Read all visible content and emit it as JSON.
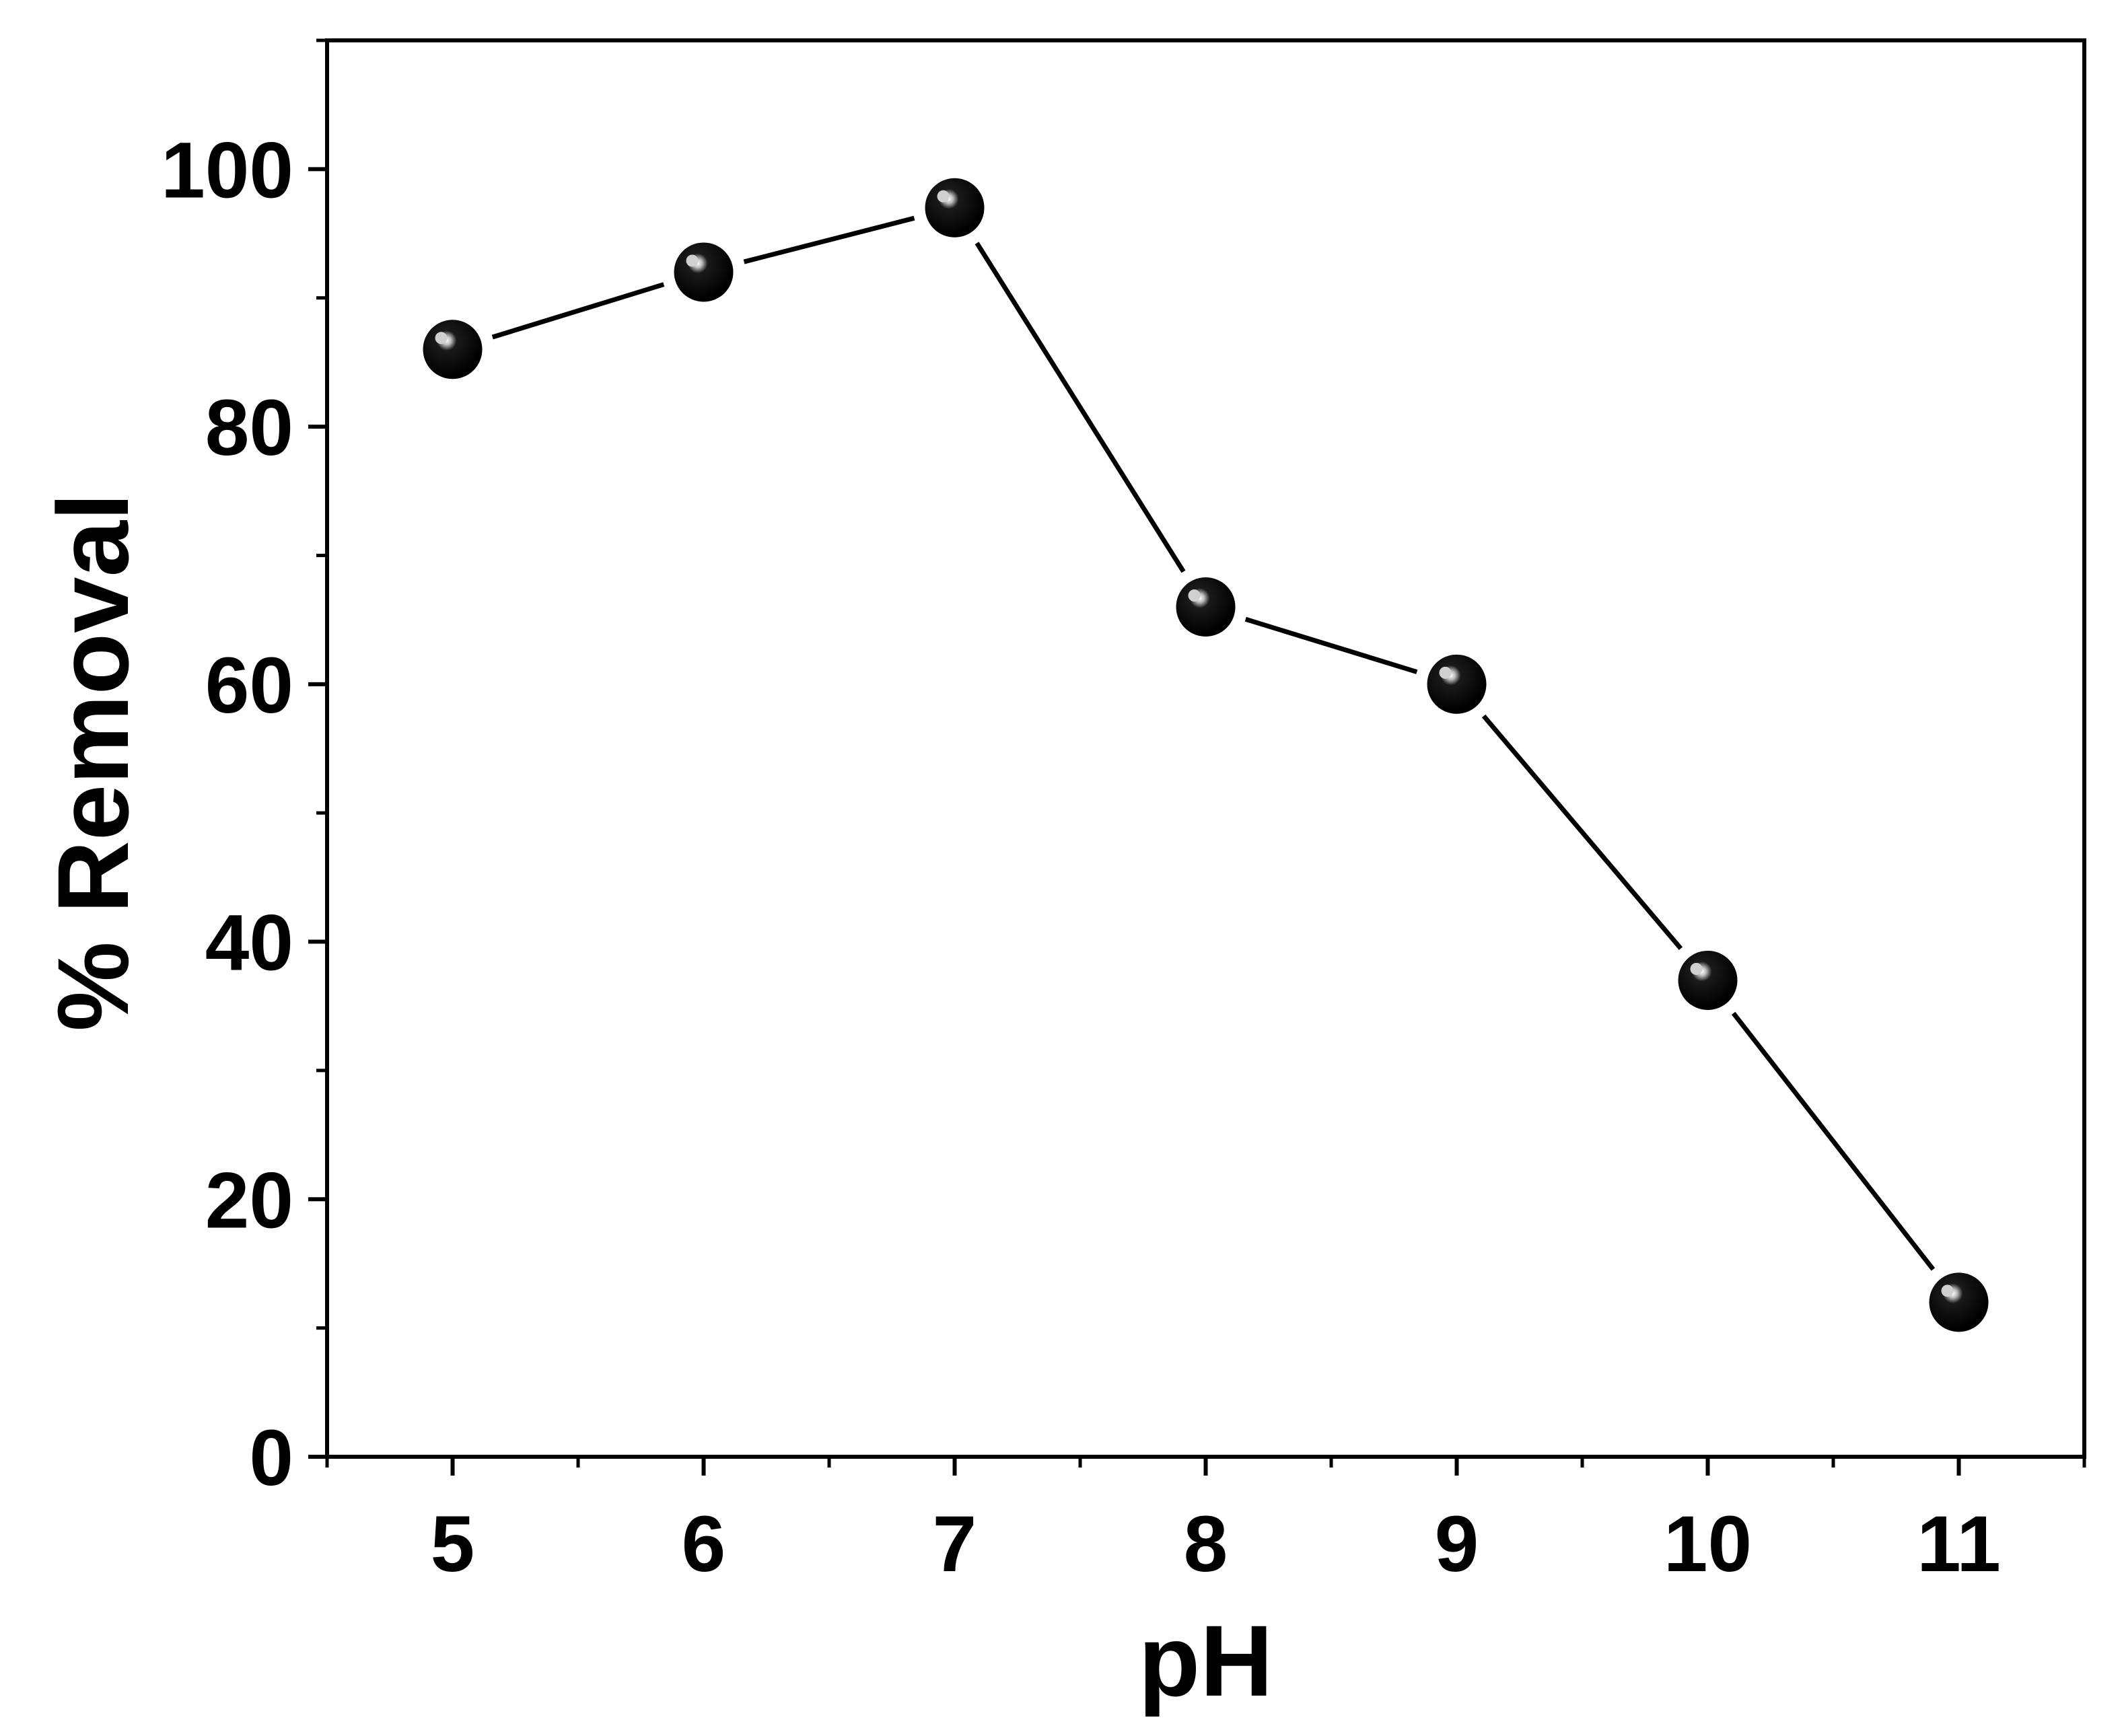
{
  "chart_data": {
    "type": "line",
    "title": "",
    "xlabel": "pH",
    "ylabel": "% Removal",
    "x": [
      5,
      6,
      7,
      8,
      9,
      10,
      11
    ],
    "series": [
      {
        "values": [
          86,
          92,
          97,
          66,
          60,
          37,
          12
        ]
      }
    ],
    "xlim": [
      4.5,
      11.5
    ],
    "ylim": [
      0,
      110
    ],
    "xticks": [
      5,
      6,
      7,
      8,
      9,
      10,
      11
    ],
    "xtick_labels": [
      "5",
      "6",
      "7",
      "8",
      "9",
      "10",
      "11"
    ],
    "yticks": [
      0,
      20,
      40,
      60,
      80,
      100
    ],
    "ytick_labels": [
      "0",
      "20",
      "40",
      "60",
      "80",
      "100"
    ],
    "grid": false,
    "legend": "none",
    "marker": "sphere",
    "colors": {
      "line": "#000000",
      "marker": "#000000",
      "highlight": "#d0d0d0",
      "axes": "#000000"
    }
  }
}
